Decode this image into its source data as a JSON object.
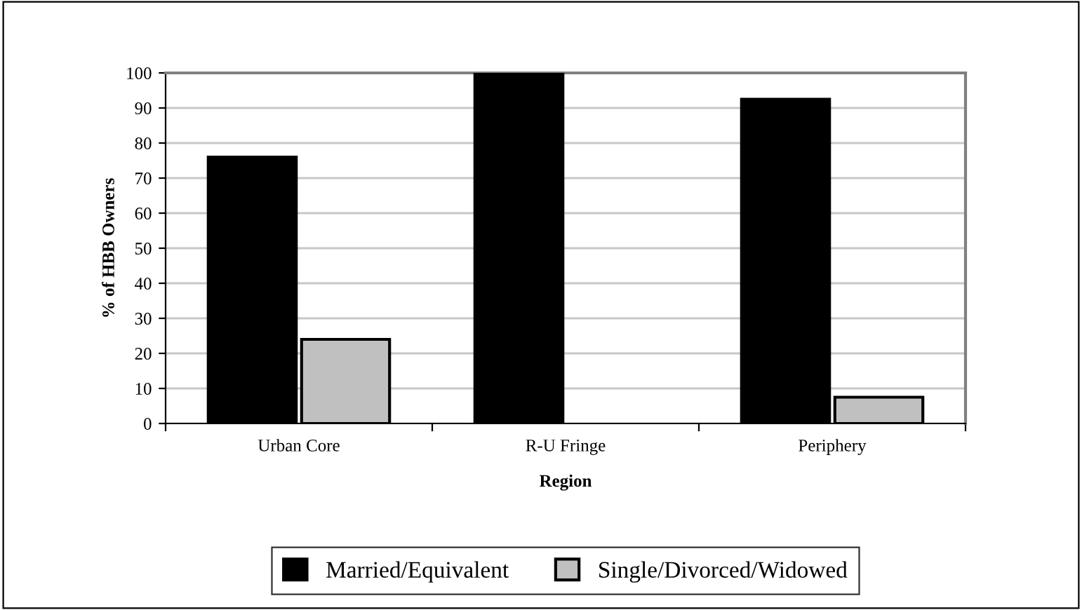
{
  "chart_data": {
    "type": "bar",
    "xlabel": "Region",
    "ylabel": "% of HBB Owners",
    "categories": [
      "Urban Core",
      "R-U Fringe",
      "Periphery"
    ],
    "series": [
      {
        "name": "Married/Equivalent",
        "color": "#000000",
        "values": [
          76,
          100,
          92.5
        ]
      },
      {
        "name": "Single/Divorced/Widowed",
        "color": "#c0c0c0",
        "values": [
          24,
          0,
          7.5
        ]
      }
    ],
    "ylim": [
      0,
      100
    ],
    "yticks": [
      0,
      10,
      20,
      30,
      40,
      50,
      60,
      70,
      80,
      90,
      100
    ],
    "grid": "y",
    "legend": "bottom"
  }
}
